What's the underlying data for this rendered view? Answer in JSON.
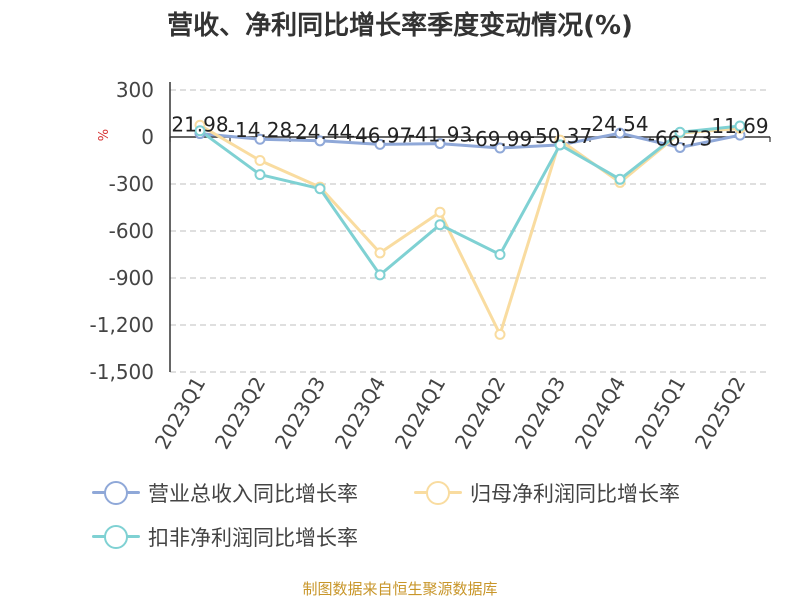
{
  "title": "营收、净利同比增长率季度变动情况(%)",
  "source": "制图数据来自恒生聚源数据库",
  "colors": {
    "revenue": "#8fa8d8",
    "net_profit": "#f9dca0",
    "deducted_profit": "#7fd1d3",
    "grid": "#cccccc",
    "axis": "#333333",
    "unit": "#d63030"
  },
  "legend_icon": "circle-line-marker",
  "chart_data": {
    "type": "line",
    "title": "营收、净利同比增长率季度变动情况(%)",
    "categories": [
      "2023Q1",
      "2023Q2",
      "2023Q3",
      "2023Q4",
      "2024Q1",
      "2024Q2",
      "2024Q3",
      "2024Q4",
      "2025Q1",
      "2025Q2"
    ],
    "ylabel": "%",
    "xlabel": "",
    "ylim": [
      -1500,
      300
    ],
    "yticks": [
      300,
      0,
      -300,
      -600,
      -900,
      -1200,
      -1500
    ],
    "ytick_labels": [
      "300",
      "0",
      "-300",
      "-600",
      "-900",
      "-1,200",
      "-1,500"
    ],
    "grid": true,
    "legend_position": "bottom",
    "series": [
      {
        "name": "营业总收入同比增长率",
        "color": "#8fa8d8",
        "values": [
          21.98,
          -14.28,
          -24.44,
          -46.97,
          -41.93,
          -69.99,
          -50.37,
          24.54,
          -66.73,
          11.69
        ],
        "labels": [
          "21.98",
          "-14.28",
          "-24.44",
          "-46.97",
          "-41.93",
          "-69.99",
          "-50.37",
          "24.54",
          "-66.73",
          "11.69"
        ]
      },
      {
        "name": "归母净利润同比增长率",
        "color": "#f9dca0",
        "values": [
          75,
          -150,
          -320,
          -740,
          -480,
          -1260,
          -20,
          -290,
          25,
          55
        ]
      },
      {
        "name": "扣非净利润同比增长率",
        "color": "#7fd1d3",
        "values": [
          40,
          -240,
          -330,
          -880,
          -560,
          -750,
          -50,
          -270,
          30,
          70
        ]
      }
    ]
  }
}
